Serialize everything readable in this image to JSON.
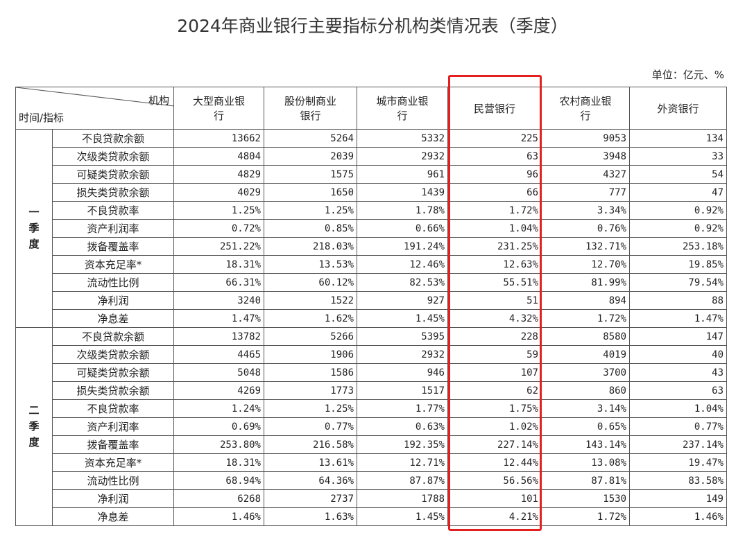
{
  "title": "2024年商业银行主要指标分机构类情况表（季度）",
  "unit": "单位：亿元、%",
  "table": {
    "corner_top": "机构",
    "corner_bottom": "时间/指标",
    "columns": [
      "大型商业银行",
      "股份制商业银行",
      "城市商业银行",
      "民营银行",
      "农村商业银行",
      "外资银行"
    ],
    "groups": [
      {
        "label": "一季度",
        "rows": [
          {
            "indicator": "不良贷款余额",
            "cells": [
              "13662",
              "5264",
              "5332",
              "225",
              "9053",
              "134"
            ]
          },
          {
            "indicator": "次级类贷款余额",
            "cells": [
              "4804",
              "2039",
              "2932",
              "63",
              "3948",
              "33"
            ]
          },
          {
            "indicator": "可疑类贷款余额",
            "cells": [
              "4829",
              "1575",
              "961",
              "96",
              "4327",
              "54"
            ]
          },
          {
            "indicator": "损失类贷款余额",
            "cells": [
              "4029",
              "1650",
              "1439",
              "66",
              "777",
              "47"
            ]
          },
          {
            "indicator": "不良贷款率",
            "cells": [
              "1.25%",
              "1.25%",
              "1.78%",
              "1.72%",
              "3.34%",
              "0.92%"
            ]
          },
          {
            "indicator": "资产利润率",
            "cells": [
              "0.72%",
              "0.85%",
              "0.66%",
              "1.04%",
              "0.76%",
              "0.92%"
            ]
          },
          {
            "indicator": "拨备覆盖率",
            "cells": [
              "251.22%",
              "218.03%",
              "191.24%",
              "231.25%",
              "132.71%",
              "253.18%"
            ]
          },
          {
            "indicator": "资本充足率*",
            "cells": [
              "18.31%",
              "13.53%",
              "12.46%",
              "12.63%",
              "12.70%",
              "19.85%"
            ]
          },
          {
            "indicator": "流动性比例",
            "cells": [
              "66.31%",
              "60.12%",
              "82.53%",
              "55.51%",
              "81.99%",
              "79.54%"
            ]
          },
          {
            "indicator": "净利润",
            "cells": [
              "3240",
              "1522",
              "927",
              "51",
              "894",
              "88"
            ]
          },
          {
            "indicator": "净息差",
            "cells": [
              "1.47%",
              "1.62%",
              "1.45%",
              "4.32%",
              "1.72%",
              "1.47%"
            ]
          }
        ]
      },
      {
        "label": "二季度",
        "rows": [
          {
            "indicator": "不良贷款余额",
            "cells": [
              "13782",
              "5266",
              "5395",
              "228",
              "8580",
              "147"
            ]
          },
          {
            "indicator": "次级类贷款余额",
            "cells": [
              "4465",
              "1906",
              "2932",
              "59",
              "4019",
              "40"
            ]
          },
          {
            "indicator": "可疑类贷款余额",
            "cells": [
              "5048",
              "1586",
              "946",
              "107",
              "3700",
              "43"
            ]
          },
          {
            "indicator": "损失类贷款余额",
            "cells": [
              "4269",
              "1773",
              "1517",
              "62",
              "860",
              "63"
            ]
          },
          {
            "indicator": "不良贷款率",
            "cells": [
              "1.24%",
              "1.25%",
              "1.77%",
              "1.75%",
              "3.14%",
              "1.04%"
            ]
          },
          {
            "indicator": "资产利润率",
            "cells": [
              "0.69%",
              "0.77%",
              "0.63%",
              "1.02%",
              "0.65%",
              "0.77%"
            ]
          },
          {
            "indicator": "拨备覆盖率",
            "cells": [
              "253.80%",
              "216.58%",
              "192.35%",
              "227.14%",
              "143.14%",
              "237.14%"
            ]
          },
          {
            "indicator": "资本充足率*",
            "cells": [
              "18.31%",
              "13.61%",
              "12.71%",
              "12.44%",
              "13.08%",
              "19.47%"
            ]
          },
          {
            "indicator": "流动性比例",
            "cells": [
              "68.94%",
              "64.36%",
              "87.87%",
              "56.56%",
              "87.81%",
              "83.58%"
            ]
          },
          {
            "indicator": "净利润",
            "cells": [
              "6268",
              "2737",
              "1788",
              "101",
              "1530",
              "149"
            ]
          },
          {
            "indicator": "净息差",
            "cells": [
              "1.46%",
              "1.63%",
              "1.45%",
              "4.21%",
              "1.72%",
              "1.46%"
            ]
          }
        ]
      }
    ]
  }
}
